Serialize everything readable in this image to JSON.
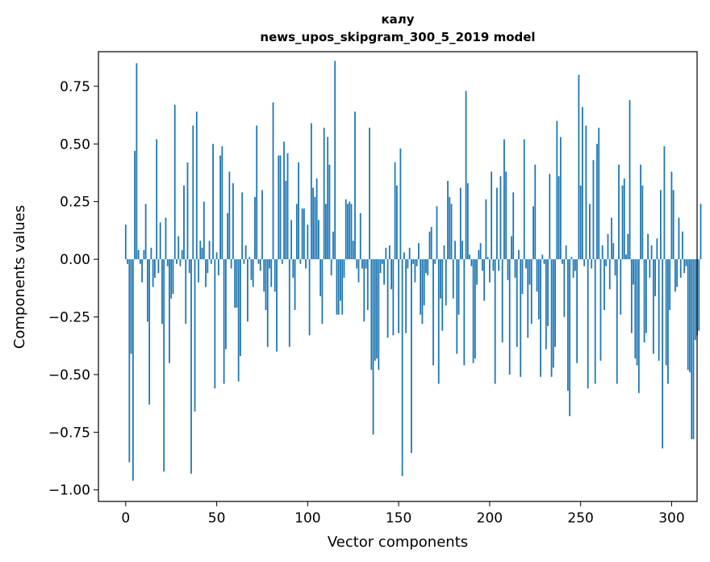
{
  "chart_data": {
    "type": "bar",
    "title": "калу",
    "subtitle": "news_upos_skipgram_300_5_2019 model",
    "xlabel": "Vector components",
    "ylabel": "Components values",
    "xlim": [
      -15,
      314
    ],
    "ylim": [
      -1.05,
      0.9
    ],
    "xticks": [
      0,
      50,
      100,
      150,
      200,
      250,
      300
    ],
    "xtick_labels": [
      "0",
      "50",
      "100",
      "150",
      "200",
      "250",
      "300"
    ],
    "yticks": [
      -1.0,
      -0.75,
      -0.5,
      -0.25,
      0.0,
      0.25,
      0.5,
      0.75
    ],
    "ytick_labels": [
      "−1.00",
      "−0.75",
      "−0.50",
      "−0.25",
      "0.00",
      "0.25",
      "0.50",
      "0.75"
    ],
    "bar_color": "#1f77b4",
    "values": [
      0.15,
      -0.02,
      -0.88,
      -0.41,
      -0.96,
      0.47,
      0.85,
      0.04,
      -0.02,
      -0.1,
      0.04,
      0.24,
      -0.27,
      -0.63,
      0.05,
      -0.12,
      -0.08,
      0.52,
      -0.06,
      0.16,
      -0.28,
      -0.92,
      0.18,
      -0.03,
      -0.45,
      -0.17,
      -0.15,
      0.67,
      -0.02,
      0.1,
      -0.03,
      0.04,
      0.32,
      -0.28,
      0.42,
      -0.06,
      -0.93,
      0.58,
      -0.66,
      0.64,
      -0.1,
      0.08,
      0.05,
      0.25,
      -0.12,
      -0.06,
      0.08,
      -0.02,
      0.5,
      -0.56,
      0.03,
      -0.07,
      0.45,
      0.49,
      -0.54,
      -0.39,
      0.2,
      0.38,
      -0.04,
      0.33,
      -0.21,
      -0.21,
      -0.53,
      -0.42,
      0.29,
      -0.02,
      0.06,
      -0.27,
      0.01,
      -0.09,
      -0.12,
      0.27,
      0.58,
      -0.02,
      -0.05,
      0.3,
      -0.14,
      -0.22,
      -0.38,
      -0.04,
      -0.12,
      0.68,
      -0.14,
      -0.4,
      0.45,
      0.45,
      -0.02,
      0.51,
      0.34,
      0.46,
      -0.38,
      0.17,
      -0.08,
      -0.22,
      0.24,
      0.42,
      -0.02,
      0.22,
      0.22,
      -0.04,
      0.15,
      -0.33,
      0.59,
      0.31,
      0.27,
      0.35,
      0.17,
      -0.16,
      -0.28,
      0.57,
      0.24,
      0.53,
      0.41,
      -0.07,
      0.12,
      0.86,
      -0.24,
      -0.24,
      -0.18,
      -0.24,
      -0.08,
      0.26,
      0.24,
      0.25,
      0.24,
      0.08,
      0.64,
      -0.04,
      -0.1,
      0.2,
      -0.04,
      -0.27,
      -0.04,
      -0.22,
      0.57,
      -0.48,
      -0.76,
      -0.44,
      -0.43,
      -0.48,
      -0.06,
      -0.02,
      -0.11,
      0.05,
      -0.34,
      0.06,
      -0.13,
      -0.33,
      0.42,
      0.32,
      -0.32,
      0.48,
      -0.94,
      0.03,
      -0.32,
      -0.04,
      0.05,
      -0.84,
      -0.02,
      -0.1,
      -0.03,
      0.07,
      -0.24,
      -0.28,
      -0.2,
      -0.06,
      -0.07,
      0.12,
      0.14,
      -0.46,
      -0.02,
      0.23,
      -0.54,
      -0.17,
      -0.31,
      0.06,
      -0.2,
      0.34,
      0.27,
      0.24,
      -0.17,
      0.08,
      -0.41,
      -0.24,
      0.31,
      0.08,
      -0.46,
      0.73,
      0.33,
      0.02,
      -0.03,
      -0.45,
      -0.43,
      -0.11,
      0.04,
      0.07,
      -0.05,
      -0.18,
      0.26,
      0.01,
      -0.1,
      0.38,
      -0.05,
      -0.54,
      0.31,
      -0.05,
      0.36,
      -0.36,
      0.52,
      0.38,
      -0.09,
      -0.5,
      0.1,
      0.29,
      -0.08,
      -0.38,
      0.04,
      -0.51,
      -0.15,
      0.52,
      -0.04,
      -0.34,
      -0.11,
      -0.28,
      0.23,
      0.41,
      -0.14,
      -0.26,
      -0.51,
      0.02,
      -0.02,
      -0.39,
      -0.29,
      0.37,
      -0.51,
      -0.47,
      -0.38,
      0.6,
      0.36,
      0.53,
      -0.02,
      -0.25,
      0.06,
      -0.57,
      -0.68,
      0.01,
      -0.08,
      -0.05,
      -0.45,
      0.8,
      0.32,
      0.66,
      -0.03,
      0.58,
      -0.56,
      0.24,
      -0.04,
      0.43,
      -0.54,
      0.5,
      0.57,
      -0.44,
      0.06,
      -0.22,
      -0.03,
      0.11,
      -0.13,
      0.18,
      0.07,
      -0.07,
      -0.54,
      0.41,
      -0.24,
      0.32,
      0.35,
      0.02,
      0.11,
      0.69,
      -0.32,
      -0.11,
      -0.43,
      -0.46,
      -0.58,
      0.41,
      0.32,
      -0.36,
      -0.32,
      0.11,
      -0.08,
      0.06,
      -0.41,
      -0.16,
      0.09,
      -0.44,
      0.3,
      -0.82,
      0.49,
      -0.46,
      -0.54,
      -0.22,
      0.38,
      0.3,
      -0.14,
      -0.12,
      0.18,
      -0.08,
      0.12,
      -0.06,
      -0.03,
      -0.48,
      -0.49,
      -0.78,
      -0.78,
      -0.35,
      -0.33,
      -0.31,
      0.24
    ]
  }
}
